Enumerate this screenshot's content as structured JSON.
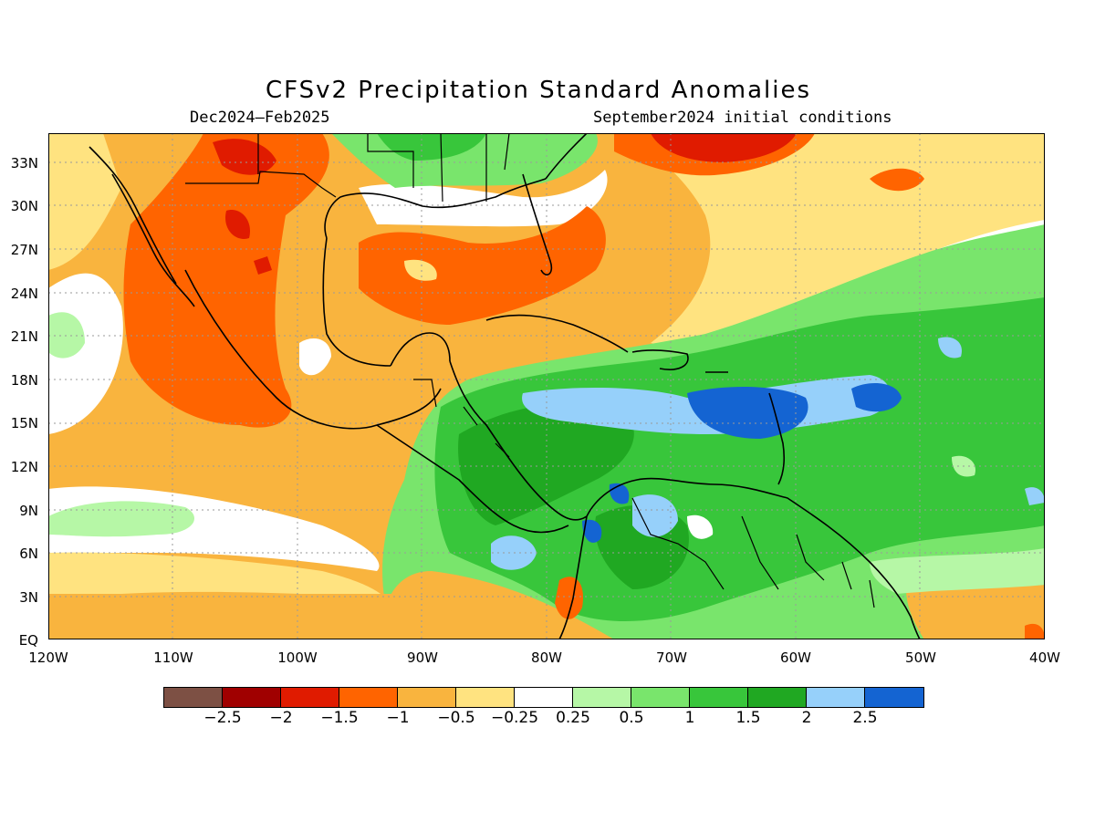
{
  "title": "CFSv2 Precipitation Standard Anomalies",
  "period": "Dec2024–Feb2025",
  "init": "September2024 initial conditions",
  "lat_labels": [
    "33N",
    "30N",
    "27N",
    "24N",
    "21N",
    "18N",
    "15N",
    "12N",
    "9N",
    "6N",
    "3N",
    "EQ"
  ],
  "lon_labels": [
    "120W",
    "110W",
    "100W",
    "90W",
    "80W",
    "70W",
    "60W",
    "50W",
    "40W"
  ],
  "colorbar": {
    "colors": [
      "#7d5044",
      "#a00000",
      "#e01b00",
      "#ff6400",
      "#f9b43e",
      "#ffe380",
      "#ffffff",
      "#b6f7a6",
      "#79e56c",
      "#38c63b",
      "#20a822",
      "#96d0fa",
      "#1464d2"
    ],
    "labels": [
      "−2.5",
      "−2",
      "−1.5",
      "−1",
      "−0.5",
      "−0.25",
      "0.25",
      "0.5",
      "1",
      "1.5",
      "2",
      "2.5"
    ]
  }
}
